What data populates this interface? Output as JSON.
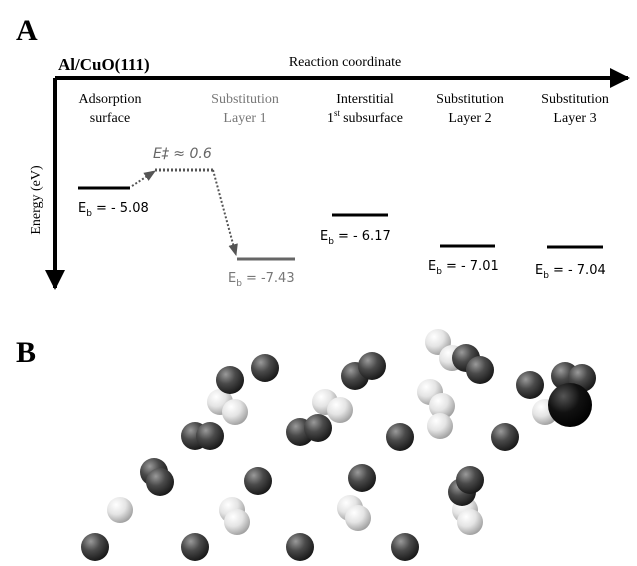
{
  "panel_a": {
    "letter": "A",
    "system": "Al/CuO(111)",
    "x_axis_label": "Reaction coordinate",
    "y_axis_label": "Energy (eV)",
    "barrier": "E‡ ≈ 0.6",
    "columns": [
      {
        "line1": "Adsorption",
        "line2": "surface",
        "symbol": "E",
        "subscript": "b",
        "energy": "= - 5.08"
      },
      {
        "line1": "Substitution",
        "line2": "Layer 1",
        "symbol": "E",
        "subscript": "b",
        "energy": "= -7.43"
      },
      {
        "line1": "Interstitial",
        "line2_number": "1",
        "line2_sup": "st",
        "line2": "subsurface",
        "symbol": "E",
        "subscript": "b",
        "energy": "= - 6.17"
      },
      {
        "line1": "Substitution",
        "line2": "Layer 2",
        "symbol": "E",
        "subscript": "b",
        "energy": "= - 7.01"
      },
      {
        "line1": "Substitution",
        "line2": "Layer 3",
        "symbol": "E",
        "subscript": "b",
        "energy": "= - 7.04"
      }
    ]
  },
  "panel_b": {
    "letter": "B"
  }
}
